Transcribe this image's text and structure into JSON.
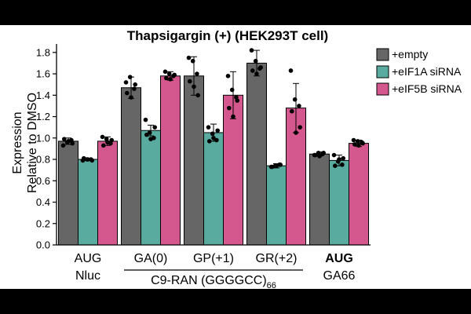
{
  "chart_data": {
    "type": "bar",
    "title": "Thapsigargin (+) (HEK293T cell)",
    "ylabel_lines": [
      "Expression",
      "Relative to DMSO"
    ],
    "ylim": [
      0,
      1.85
    ],
    "yticks": [
      "0.0",
      "0.2",
      "0.4",
      "0.6",
      "0.8",
      "1.0",
      "1.2",
      "1.4",
      "1.6",
      "1.8"
    ],
    "legend_position": "top-right",
    "categories": [
      {
        "line1": "AUG",
        "line2": "Nluc",
        "line1_color": "#000000"
      },
      {
        "line1": "GA(0)",
        "line2": "",
        "line1_color": "#000000"
      },
      {
        "line1": "GP(+1)",
        "line2": "",
        "line1_color": "#000000"
      },
      {
        "line1": "GR(+2)",
        "line2": "",
        "line1_color": "#000000"
      },
      {
        "line1": "AUG",
        "line2": "GA66",
        "line1_color": "#e64ce6"
      }
    ],
    "group_label": {
      "text": "C9-RAN (GGGGCC)",
      "subscript": "66"
    },
    "series": [
      {
        "name": "+empty",
        "color": "#666666",
        "values": [
          0.97,
          1.47,
          1.58,
          1.7,
          0.85
        ],
        "errors": [
          0.03,
          0.1,
          0.18,
          0.12,
          0.02
        ],
        "points": [
          [
            0.93,
            0.96,
            0.98,
            0.99,
            0.97,
            0.95
          ],
          [
            1.52,
            1.57,
            1.46,
            1.42,
            1.38,
            1.5
          ],
          [
            1.75,
            1.72,
            1.6,
            1.53,
            1.48,
            1.4
          ],
          [
            1.82,
            1.72,
            1.65,
            1.63,
            1.6,
            1.66
          ],
          [
            0.84,
            0.86,
            0.85,
            0.84,
            0.83,
            0.86
          ]
        ]
      },
      {
        "name": "+eIF1A siRNA",
        "color": "#5aab9f",
        "values": [
          0.8,
          1.07,
          1.05,
          0.74,
          0.79
        ],
        "errors": [
          0.01,
          0.05,
          0.08,
          0.02,
          0.05
        ],
        "points": [
          [
            0.79,
            0.8,
            0.8,
            0.81,
            0.8,
            0.79
          ],
          [
            1.17,
            1.05,
            1.0,
            1.03,
            0.99,
            1.1
          ],
          [
            1.1,
            1.04,
            0.98,
            0.97,
            1.0,
            1.07
          ],
          [
            0.73,
            0.74,
            0.75,
            0.73,
            0.74,
            0.75
          ],
          [
            0.84,
            0.78,
            0.75,
            0.74,
            0.8,
            0.81
          ]
        ]
      },
      {
        "name": "+eIF5B siRNA",
        "color": "#d4578e",
        "values": [
          0.97,
          1.58,
          1.4,
          1.28,
          0.95
        ],
        "errors": [
          0.04,
          0.04,
          0.22,
          0.23,
          0.03
        ],
        "points": [
          [
            1.01,
            0.99,
            0.95,
            0.93,
            0.96,
            0.98
          ],
          [
            1.62,
            1.6,
            1.58,
            1.56,
            1.55,
            1.59
          ],
          [
            1.58,
            1.45,
            1.38,
            1.28,
            1.2,
            1.35
          ],
          [
            1.63,
            1.36,
            1.3,
            1.25,
            1.05,
            1.1
          ],
          [
            0.98,
            0.97,
            0.96,
            0.94,
            0.93,
            0.95
          ]
        ]
      }
    ]
  }
}
